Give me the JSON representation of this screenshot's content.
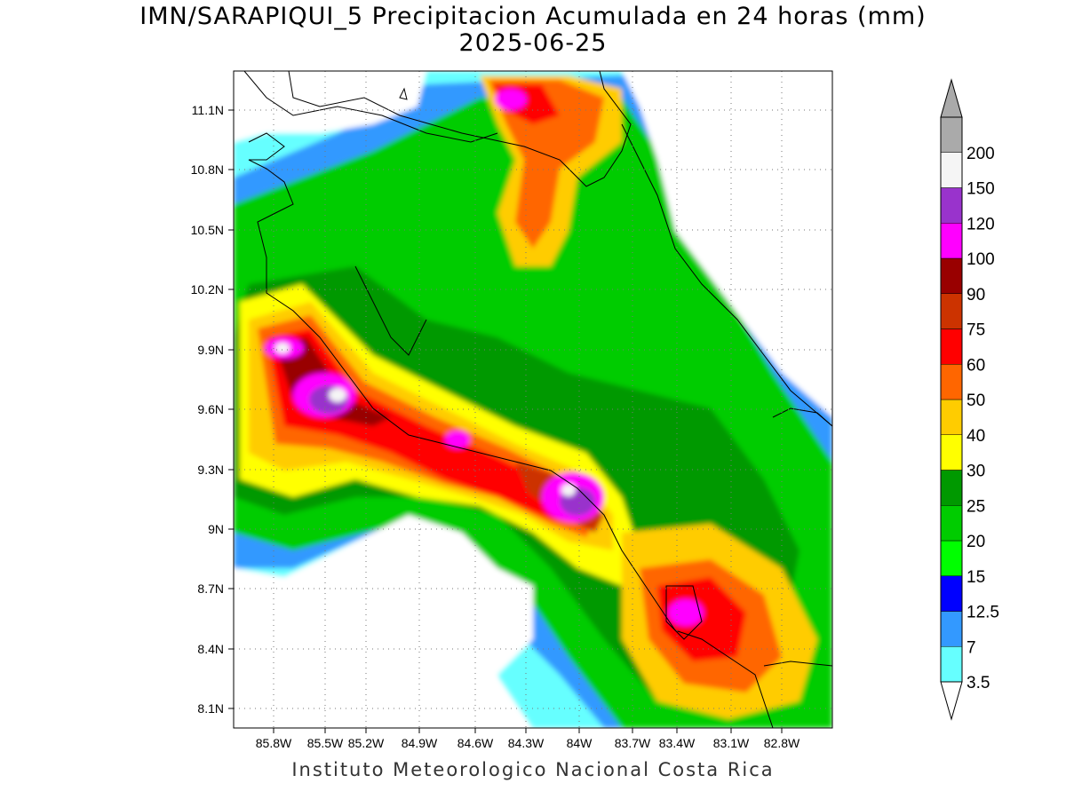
{
  "title_line1": "IMN/SARAPIQUI_5 Precipitacion Acumulada en 24 horas (mm)",
  "title_line2": "2025-06-25",
  "footer": "Instituto Meteorologico Nacional Costa Rica",
  "map": {
    "lon_range": [
      -86.0,
      -82.6
    ],
    "lat_range": [
      8.0,
      11.2
    ],
    "lat_ticks": [
      "11.1N",
      "10.8N",
      "10.5N",
      "10.2N",
      "9.9N",
      "9.6N",
      "9.3N",
      "9N",
      "8.7N",
      "8.4N",
      "8.1N"
    ],
    "lon_ticks": [
      "85.8W",
      "85.5W",
      "85.2W",
      "84.9W",
      "84.6W",
      "84.3W",
      "84W",
      "83.7W",
      "83.4W",
      "83.1W",
      "82.8W"
    ],
    "grid": "dotted"
  },
  "legend": {
    "levels": [
      "3.5",
      "7",
      "12.5",
      "15",
      "20",
      "25",
      "30",
      "40",
      "50",
      "60",
      "75",
      "90",
      "100",
      "120",
      "150",
      "200"
    ],
    "colors": [
      "#66ffff",
      "#3399ff",
      "#0000ff",
      "#00ff00",
      "#00cc00",
      "#009900",
      "#ffff00",
      "#ffcc00",
      "#ff6600",
      "#ff0000",
      "#cc3300",
      "#990000",
      "#ff00ff",
      "#9933cc",
      "#f5f5f5",
      "#aaaaaa"
    ],
    "over_color": "#aaaaaa",
    "under_color": "#ffffff"
  }
}
